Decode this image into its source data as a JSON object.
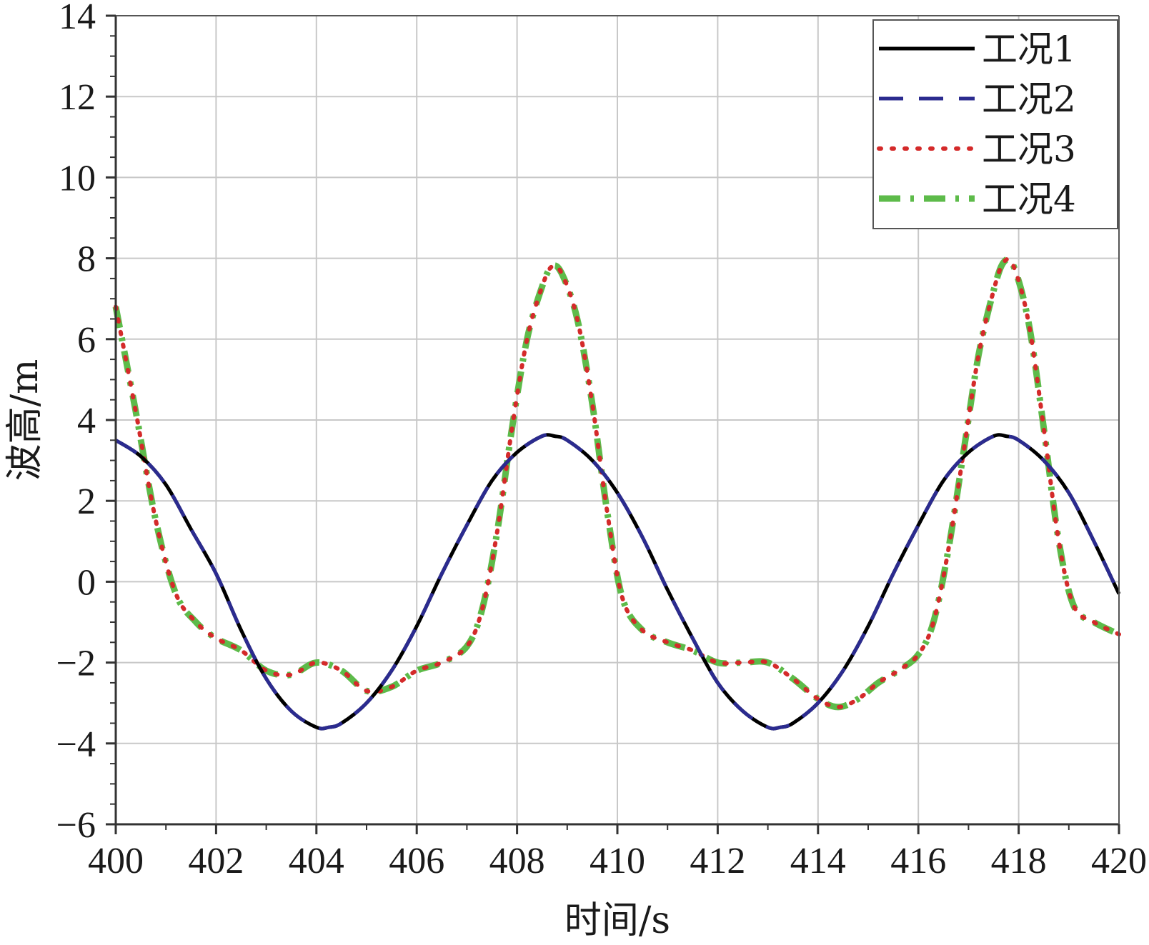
{
  "chart_data": {
    "type": "line",
    "xlabel": "时间/s",
    "ylabel": "波高/m",
    "xlim": [
      400,
      420
    ],
    "ylim": [
      -6,
      14
    ],
    "xticks": [
      400,
      402,
      404,
      406,
      408,
      410,
      412,
      414,
      416,
      418,
      420
    ],
    "yticks": [
      -6,
      -4,
      -2,
      0,
      2,
      4,
      6,
      8,
      10,
      12,
      14
    ],
    "xtick_labels": [
      "400",
      "402",
      "404",
      "406",
      "408",
      "410",
      "412",
      "414",
      "416",
      "418",
      "420"
    ],
    "ytick_labels": [
      "−6",
      "−4",
      "−2",
      "0",
      "2",
      "4",
      "6",
      "8",
      "10",
      "12",
      "14"
    ],
    "grid": true,
    "legend_position": "top-right",
    "series": [
      {
        "name": "工况1",
        "color": "#000000",
        "style": "solid",
        "x": [
          400,
          400.5,
          401,
          401.5,
          402,
          402.5,
          403,
          403.5,
          404,
          404.25,
          404.5,
          405,
          405.5,
          406,
          406.5,
          407,
          407.5,
          408,
          408.5,
          408.75,
          409,
          409.5,
          410,
          410.5,
          411,
          411.5,
          412,
          412.5,
          413,
          413.25,
          413.5,
          414,
          414.5,
          415,
          415.5,
          416,
          416.5,
          417,
          417.5,
          417.75,
          418,
          418.5,
          419,
          419.5,
          420
        ],
        "y": [
          3.5,
          3.1,
          2.4,
          1.3,
          0.2,
          -1.2,
          -2.4,
          -3.2,
          -3.6,
          -3.6,
          -3.5,
          -3.0,
          -2.2,
          -1.1,
          0.2,
          1.4,
          2.5,
          3.2,
          3.6,
          3.6,
          3.5,
          3.0,
          2.2,
          1.1,
          -0.2,
          -1.4,
          -2.5,
          -3.2,
          -3.6,
          -3.6,
          -3.5,
          -3.0,
          -2.2,
          -1.1,
          0.2,
          1.4,
          2.5,
          3.2,
          3.6,
          3.6,
          3.5,
          3.0,
          2.2,
          1.0,
          -0.3
        ]
      },
      {
        "name": "工况2",
        "color": "#2b2b8f",
        "style": "dashed",
        "x": [
          400,
          400.5,
          401,
          401.5,
          402,
          402.5,
          403,
          403.5,
          404,
          404.25,
          404.5,
          405,
          405.5,
          406,
          406.5,
          407,
          407.5,
          408,
          408.5,
          408.75,
          409,
          409.5,
          410,
          410.5,
          411,
          411.5,
          412,
          412.5,
          413,
          413.25,
          413.5,
          414,
          414.5,
          415,
          415.5,
          416,
          416.5,
          417,
          417.5,
          417.75,
          418,
          418.5,
          419,
          419.5,
          420
        ],
        "y": [
          3.5,
          3.1,
          2.4,
          1.3,
          0.2,
          -1.2,
          -2.4,
          -3.2,
          -3.6,
          -3.6,
          -3.5,
          -3.0,
          -2.2,
          -1.1,
          0.2,
          1.4,
          2.5,
          3.2,
          3.6,
          3.6,
          3.5,
          3.0,
          2.2,
          1.1,
          -0.2,
          -1.4,
          -2.5,
          -3.2,
          -3.6,
          -3.6,
          -3.5,
          -3.0,
          -2.2,
          -1.1,
          0.2,
          1.4,
          2.5,
          3.2,
          3.6,
          3.6,
          3.5,
          3.0,
          2.2,
          1.0,
          -0.3
        ]
      },
      {
        "name": "工况3",
        "color": "#d42a2a",
        "style": "dotted",
        "x": [
          400,
          400.4,
          400.8,
          401.2,
          401.6,
          402,
          402.5,
          403,
          403.5,
          404,
          404.5,
          405,
          405.5,
          406,
          406.5,
          407,
          407.3,
          407.6,
          407.9,
          408.2,
          408.5,
          408.7,
          408.9,
          409.2,
          409.5,
          409.8,
          410.1,
          410.5,
          411,
          411.5,
          412,
          412.5,
          413,
          413.5,
          414,
          414.4,
          414.8,
          415.2,
          415.6,
          416,
          416.3,
          416.6,
          416.9,
          417.2,
          417.5,
          417.7,
          417.9,
          418.2,
          418.5,
          418.8,
          419.1,
          419.5,
          420
        ],
        "y": [
          6.8,
          4.2,
          1.5,
          -0.3,
          -1.0,
          -1.4,
          -1.7,
          -2.2,
          -2.3,
          -2.0,
          -2.2,
          -2.7,
          -2.6,
          -2.2,
          -2.0,
          -1.6,
          -0.7,
          1.2,
          3.8,
          6.0,
          7.3,
          7.8,
          7.6,
          6.5,
          4.4,
          1.7,
          -0.4,
          -1.2,
          -1.5,
          -1.7,
          -2.0,
          -2.0,
          -2.0,
          -2.4,
          -2.9,
          -3.1,
          -2.9,
          -2.5,
          -2.2,
          -1.8,
          -1.0,
          0.8,
          3.2,
          5.6,
          7.2,
          7.9,
          7.8,
          6.4,
          3.8,
          1.0,
          -0.6,
          -1.0,
          -1.3
        ]
      },
      {
        "name": "工况4",
        "color": "#5dbb4a",
        "style": "dashdot",
        "x": [
          400,
          400.4,
          400.8,
          401.2,
          401.6,
          402,
          402.5,
          403,
          403.5,
          404,
          404.5,
          405,
          405.5,
          406,
          406.5,
          407,
          407.3,
          407.6,
          407.9,
          408.2,
          408.5,
          408.7,
          408.9,
          409.2,
          409.5,
          409.8,
          410.1,
          410.5,
          411,
          411.5,
          412,
          412.5,
          413,
          413.5,
          414,
          414.4,
          414.8,
          415.2,
          415.6,
          416,
          416.3,
          416.6,
          416.9,
          417.2,
          417.5,
          417.7,
          417.9,
          418.2,
          418.5,
          418.8,
          419.1,
          419.5,
          420
        ],
        "y": [
          6.8,
          4.2,
          1.5,
          -0.3,
          -1.0,
          -1.4,
          -1.7,
          -2.2,
          -2.3,
          -2.0,
          -2.2,
          -2.7,
          -2.6,
          -2.2,
          -2.0,
          -1.6,
          -0.7,
          1.2,
          3.8,
          6.0,
          7.3,
          7.8,
          7.6,
          6.5,
          4.4,
          1.7,
          -0.4,
          -1.2,
          -1.5,
          -1.7,
          -2.0,
          -2.0,
          -2.0,
          -2.4,
          -2.9,
          -3.1,
          -2.9,
          -2.5,
          -2.2,
          -1.8,
          -1.0,
          0.8,
          3.2,
          5.6,
          7.2,
          7.9,
          7.8,
          6.4,
          3.8,
          1.0,
          -0.6,
          -1.0,
          -1.3
        ]
      }
    ]
  }
}
